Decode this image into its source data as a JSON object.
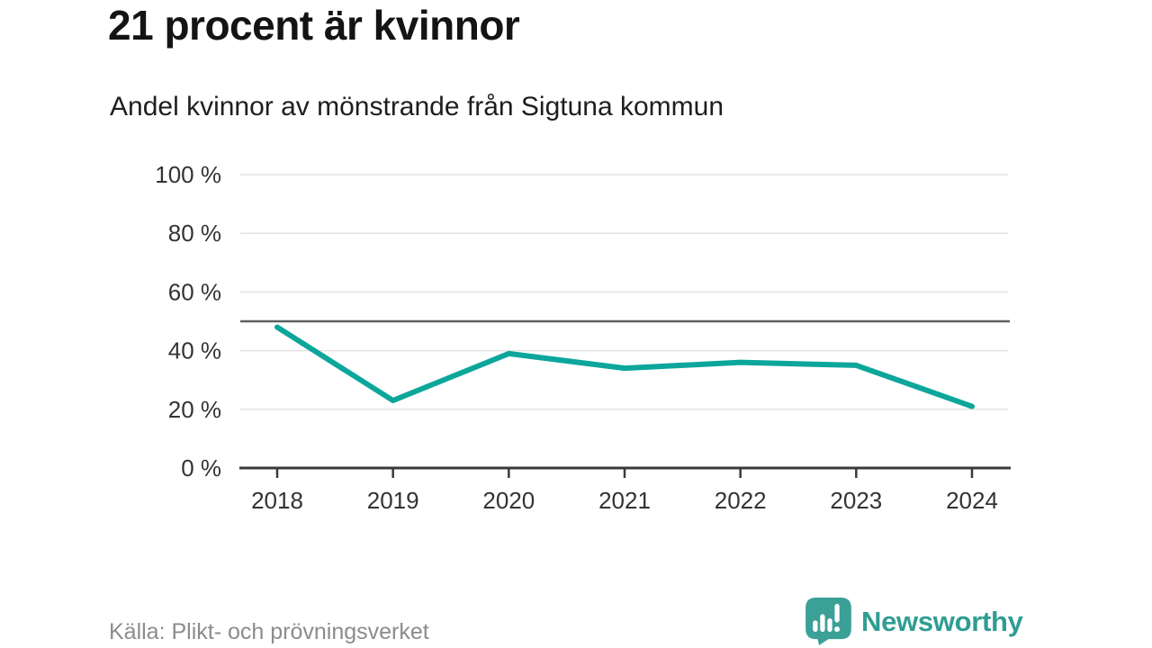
{
  "header": {
    "title": "21 procent är kvinnor",
    "subtitle": "Andel kvinnor av mönstrande från Sigtuna kommun"
  },
  "chart_data": {
    "type": "line",
    "title": "21 procent är kvinnor",
    "subtitle": "Andel kvinnor av mönstrande från Sigtuna kommun",
    "x": [
      2018,
      2019,
      2020,
      2021,
      2022,
      2023,
      2024
    ],
    "series": [
      {
        "name": "Andel kvinnor av mönstrande",
        "values": [
          48,
          23,
          39,
          34,
          36,
          35,
          21
        ]
      }
    ],
    "xlabel": "",
    "ylabel": "",
    "ylim": [
      0,
      100
    ],
    "yticks": [
      0,
      20,
      40,
      60,
      80,
      100
    ],
    "ytick_suffix": " %",
    "reference_line_y": 50,
    "grid": "horizontal",
    "legend": "none"
  },
  "footer": {
    "source": "Källa: Plikt- och prövningsverket",
    "brand": "Newsworthy"
  },
  "colors": {
    "line": "#0ca69b",
    "grid": "#e2e2e2",
    "reference_line": "#5f5f5f",
    "axis": "#3a3a3a",
    "axis_label": "#333333",
    "title_text": "#141414",
    "muted_text": "#8c8c8c",
    "logo_teal": "#3ba098",
    "logo_text_teal": "#2f9d94"
  }
}
